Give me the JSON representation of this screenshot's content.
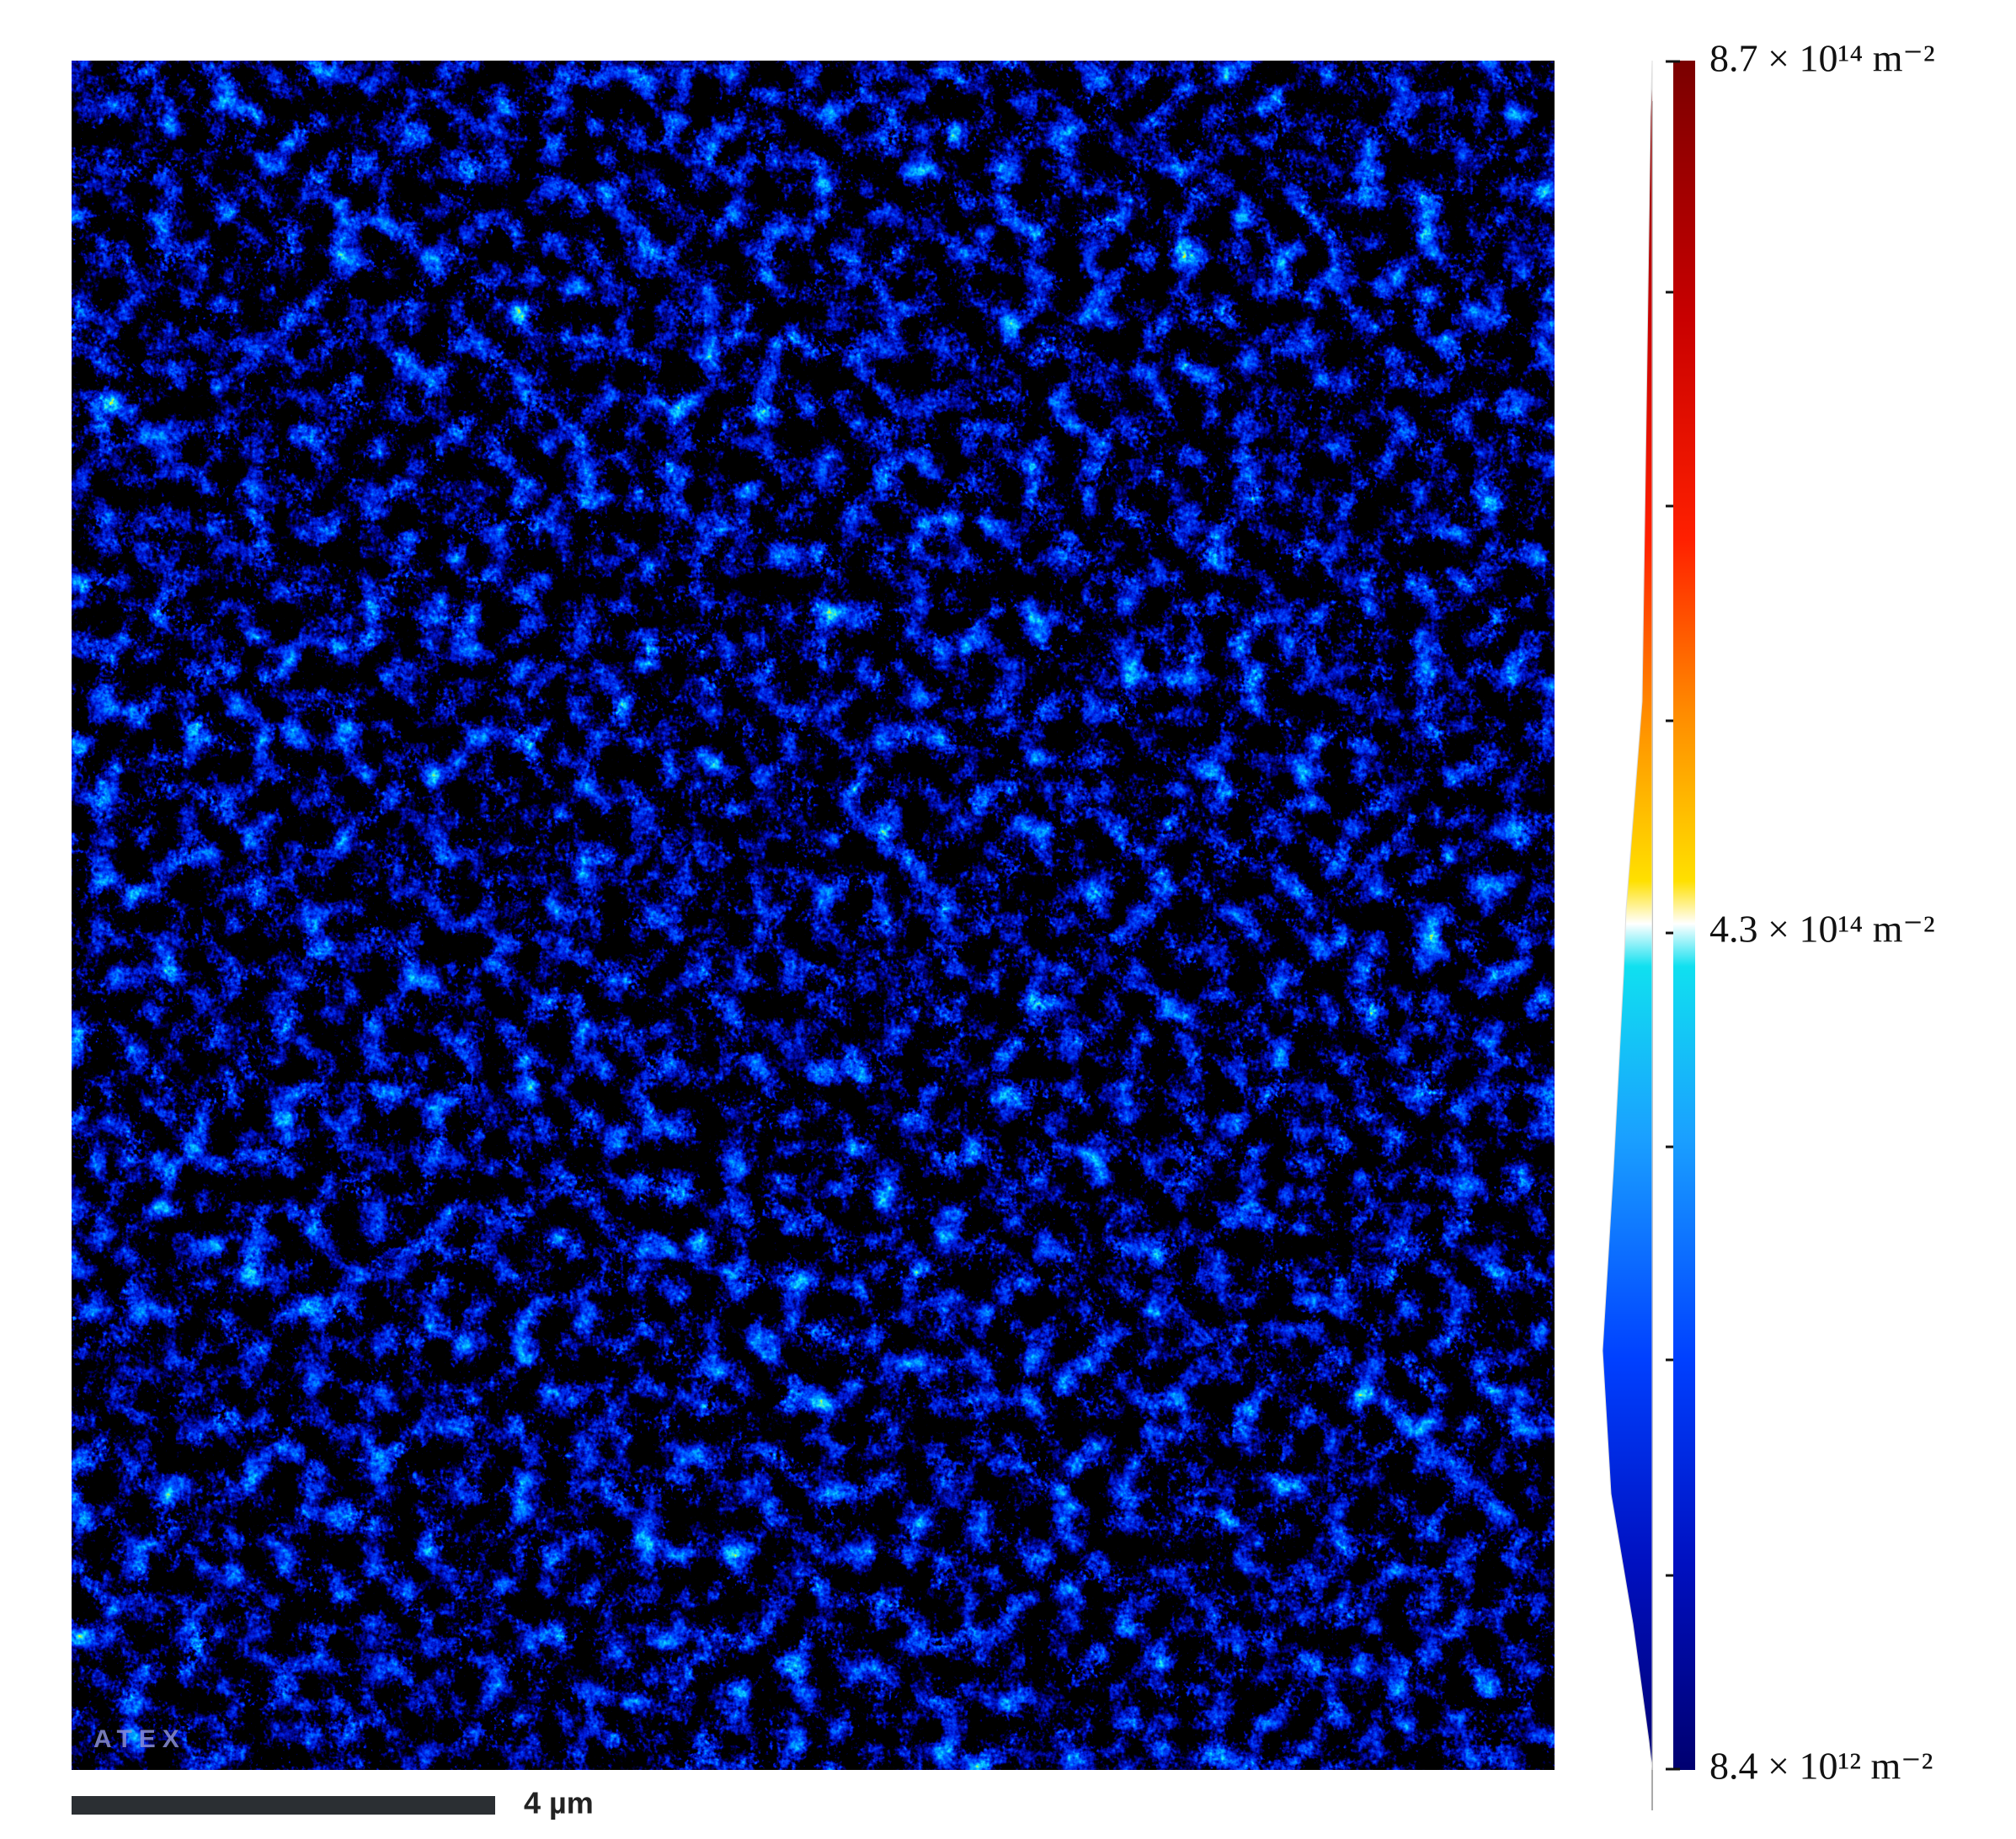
{
  "map": {
    "watermark": "ATEX"
  },
  "scale_bar": {
    "label": "4 µm"
  },
  "colorbar": {
    "labels": [
      "8.7 × 10¹⁴ m⁻²",
      "4.3 × 10¹⁴ m⁻²",
      "8.4 × 10¹² m⁻²"
    ]
  }
}
